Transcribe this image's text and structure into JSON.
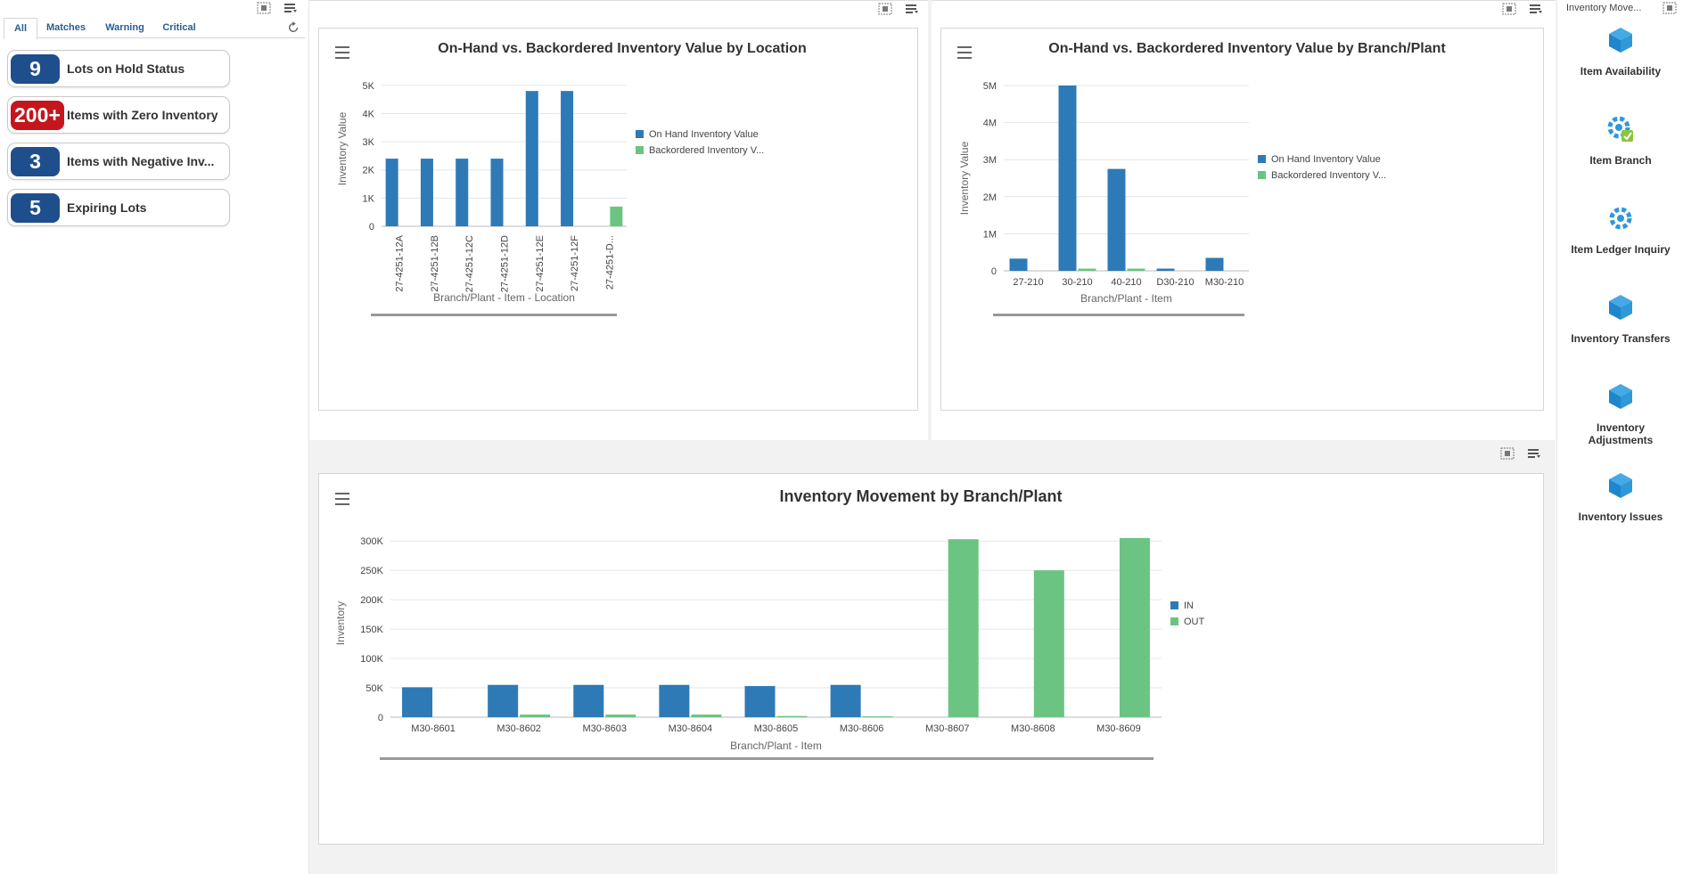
{
  "alerts_panel": {
    "tabs": [
      "All",
      "Matches",
      "Warning",
      "Critical"
    ],
    "active_tab": "All",
    "items": [
      {
        "badge": "9",
        "label": "Lots on Hold Status",
        "color": "#1f4e8c"
      },
      {
        "badge": "200+",
        "label": "Items with Zero Inventory",
        "color": "#c4161c"
      },
      {
        "badge": "3",
        "label": "Items with Negative Inv...",
        "color": "#1f4e8c"
      },
      {
        "badge": "5",
        "label": "Expiring Lots",
        "color": "#1f4e8c"
      }
    ]
  },
  "charts": {
    "location": {
      "title": "On-Hand vs. Backordered Inventory Value by Location",
      "legend": [
        "On Hand Inventory Value",
        "Backordered Inventory V..."
      ]
    },
    "branch": {
      "title": "On-Hand vs. Backordered Inventory Value by Branch/Plant",
      "legend": [
        "On Hand Inventory Value",
        "Backordered Inventory V..."
      ]
    },
    "movement": {
      "title": "Inventory Movement by Branch/Plant",
      "legend": [
        "IN",
        "OUT"
      ]
    }
  },
  "chart_data": [
    {
      "type": "bar",
      "title": "On-Hand vs. Backordered Inventory Value by Location",
      "xlabel": "Branch/Plant - Item - Location",
      "ylabel": "Inventory Value",
      "ylim": [
        0,
        5500
      ],
      "yticks": [
        0,
        1000,
        2000,
        3000,
        4000,
        5000
      ],
      "ytick_labels": [
        "0",
        "1K",
        "2K",
        "3K",
        "4K",
        "5K"
      ],
      "categories": [
        "27-4251-12A",
        "27-4251-12B",
        "27-4251-12C",
        "27-4251-12D",
        "27-4251-12E",
        "27-4251-12F",
        "27-4251-D..."
      ],
      "series": [
        {
          "name": "On Hand Inventory Value",
          "color": "#2e7ab6",
          "values": [
            2400,
            2400,
            2400,
            2400,
            4800,
            4800,
            0
          ]
        },
        {
          "name": "Backordered Inventory V...",
          "color": "#6cc483",
          "values": [
            0,
            0,
            0,
            0,
            0,
            0,
            700
          ]
        }
      ]
    },
    {
      "type": "bar",
      "title": "On-Hand vs. Backordered Inventory Value by Branch/Plant",
      "xlabel": "Branch/Plant - Item",
      "ylabel": "Inventory Value",
      "ylim": [
        0,
        5000000
      ],
      "yticks": [
        0,
        1000000,
        2000000,
        3000000,
        4000000,
        5000000
      ],
      "ytick_labels": [
        "0",
        "1M",
        "2M",
        "3M",
        "4M",
        "5M"
      ],
      "categories": [
        "27-210",
        "30-210",
        "40-210",
        "D30-210",
        "M30-210"
      ],
      "series": [
        {
          "name": "On Hand Inventory Value",
          "color": "#2e7ab6",
          "values": [
            330000,
            5000000,
            2750000,
            60000,
            350000
          ]
        },
        {
          "name": "Backordered Inventory V...",
          "color": "#6cc483",
          "values": [
            0,
            60000,
            60000,
            0,
            0
          ]
        }
      ]
    },
    {
      "type": "bar",
      "title": "Inventory Movement by Branch/Plant",
      "xlabel": "Branch/Plant - Item",
      "ylabel": "Inventory",
      "ylim": [
        0,
        320000
      ],
      "yticks": [
        0,
        50000,
        100000,
        150000,
        200000,
        250000,
        300000
      ],
      "ytick_labels": [
        "0",
        "50K",
        "100K",
        "150K",
        "200K",
        "250K",
        "300K"
      ],
      "categories": [
        "M30-8601",
        "M30-8602",
        "M30-8603",
        "M30-8604",
        "M30-8605",
        "M30-8606",
        "M30-8607",
        "M30-8608",
        "M30-8609"
      ],
      "series": [
        {
          "name": "IN",
          "color": "#2e7ab6",
          "values": [
            51000,
            55000,
            55000,
            55000,
            53000,
            55000,
            0,
            0,
            0
          ]
        },
        {
          "name": "OUT",
          "color": "#6cc483",
          "values": [
            0,
            4500,
            4500,
            4500,
            2000,
            1500,
            303000,
            250000,
            305000
          ]
        }
      ]
    }
  ],
  "launcher": {
    "header": "Inventory Move...",
    "items": [
      {
        "label": "Item Availability",
        "icon": "cube-icon"
      },
      {
        "label": "Item Branch",
        "icon": "gear-refresh-icon"
      },
      {
        "label": "Item Ledger Inquiry",
        "icon": "gear-icon"
      },
      {
        "label": "Inventory Transfers",
        "icon": "cube-icon"
      },
      {
        "label": "Inventory Adjustments",
        "icon": "cube-icon"
      },
      {
        "label": "Inventory Issues",
        "icon": "cube-icon"
      }
    ]
  }
}
